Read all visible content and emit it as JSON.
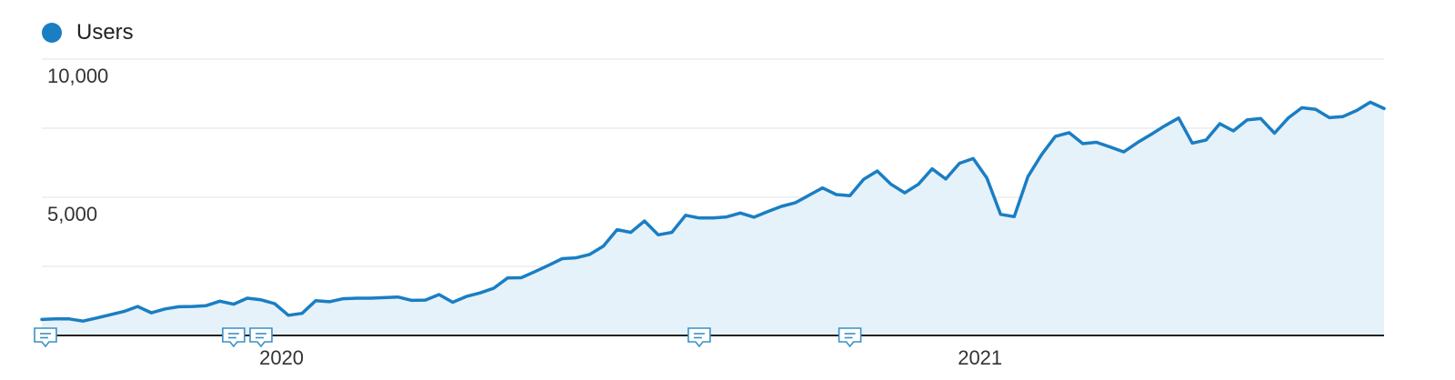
{
  "chart_data": {
    "type": "area",
    "legend_position": "top-left",
    "grid": true,
    "x_tick_labels": [
      "2020",
      "2021"
    ],
    "y_tick_labels": [
      "10,000",
      "5,000"
    ],
    "ylim": [
      0,
      10000
    ],
    "annotation_marker_count": 5,
    "series": [
      {
        "name": "Users",
        "color": "#1a7ec3",
        "fill": "#e6f2f9",
        "values": [
          580,
          600,
          600,
          520,
          630,
          750,
          870,
          1050,
          820,
          960,
          1040,
          1050,
          1080,
          1240,
          1130,
          1350,
          1290,
          1150,
          730,
          800,
          1260,
          1220,
          1330,
          1350,
          1350,
          1370,
          1390,
          1270,
          1280,
          1480,
          1200,
          1410,
          1540,
          1710,
          2080,
          2090,
          2310,
          2540,
          2780,
          2810,
          2930,
          3230,
          3830,
          3730,
          4140,
          3640,
          3730,
          4350,
          4250,
          4250,
          4290,
          4430,
          4280,
          4480,
          4670,
          4800,
          5070,
          5340,
          5100,
          5060,
          5650,
          5950,
          5470,
          5160,
          5470,
          6030,
          5660,
          6230,
          6400,
          5700,
          4380,
          4300,
          5750,
          6550,
          7200,
          7340,
          6940,
          6990,
          6820,
          6640,
          6980,
          7280,
          7590,
          7870,
          6960,
          7070,
          7660,
          7400,
          7800,
          7850,
          7320,
          7870,
          8240,
          8180,
          7880,
          7920,
          8140,
          8440,
          8210
        ],
        "annotation_indices": [
          0,
          14,
          16,
          48,
          59
        ]
      }
    ]
  }
}
